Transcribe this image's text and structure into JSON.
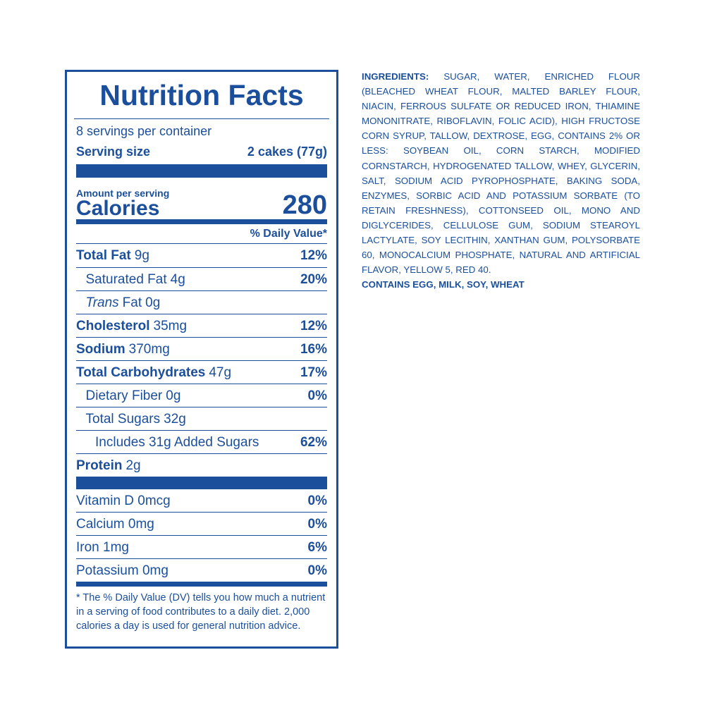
{
  "label": {
    "title": "Nutrition Facts",
    "servings": "8 servings per container",
    "serving_size": {
      "label": "Serving size",
      "value": "2 cakes (77g)"
    },
    "calories": {
      "caption": "Amount per serving",
      "label": "Calories",
      "value": "280"
    },
    "dv_header": "% Daily Value*",
    "nutrients": [
      {
        "name": "Total Fat",
        "amount": "9g",
        "dv": "12%",
        "sub": [
          {
            "name": "Saturated Fat",
            "amount": "4g",
            "dv": "20%"
          },
          {
            "name_italic": "Trans",
            "name": "Fat",
            "amount": "0g"
          }
        ]
      },
      {
        "name": "Cholesterol",
        "amount": "35mg",
        "dv": "12%"
      },
      {
        "name": "Sodium",
        "amount": "370mg",
        "dv": "16%"
      },
      {
        "name": "Total Carbohydrates",
        "amount": "47g",
        "dv": "17%",
        "sub": [
          {
            "name": "Dietary Fiber",
            "amount": "0g",
            "dv": "0%"
          },
          {
            "name": "Total Sugars",
            "amount": "32g",
            "sub": [
              {
                "name": "Includes 31g Added Sugars",
                "dv": "62%"
              }
            ]
          }
        ]
      },
      {
        "name": "Protein",
        "amount": "2g"
      }
    ],
    "vitamins": [
      {
        "name": "Vitamin D 0mcg",
        "dv": "0%"
      },
      {
        "name": "Calcium 0mg",
        "dv": "0%"
      },
      {
        "name": "Iron 1mg",
        "dv": "6%"
      },
      {
        "name": "Potassium 0mg",
        "dv": "0%"
      }
    ],
    "footnote": "* The % Daily Value (DV) tells you how much a nutrient in a serving of food contributes to a daily diet. 2,000 calories a day is used for general nutrition advice."
  },
  "ingredients": {
    "label": "INGREDIENTS:",
    "text": "SUGAR, WATER, ENRICHED FLOUR (BLEACHED WHEAT FLOUR, MALTED BARLEY FLOUR, NIACIN, FERROUS SULFATE OR REDUCED IRON, THIAMINE MONONITRATE, RIBOFLAVIN, FOLIC ACID), HIGH FRUCTOSE CORN SYRUP, TALLOW, DEXTROSE, EGG, CONTAINS 2% OR LESS: SOYBEAN OIL, CORN STARCH, MODIFIED CORNSTARCH, HYDROGENATED TALLOW, WHEY, GLYCERIN, SALT, SODIUM ACID PYROPHOSPHATE, BAKING SODA, ENZYMES, SORBIC ACID AND POTASSIUM SORBATE (TO RETAIN FRESHNESS), COTTONSEED OIL, MONO AND DIGLYCERIDES, CELLULOSE GUM, SODIUM STEAROYL LACTYLATE, SOY LECITHIN, XANTHAN GUM, POLYSORBATE 60, MONOCALCIUM PHOSPHATE, NATURAL AND ARTIFICIAL FLAVOR, YELLOW 5, RED 40.",
    "contains": "CONTAINS EGG, MILK, SOY, WHEAT"
  }
}
